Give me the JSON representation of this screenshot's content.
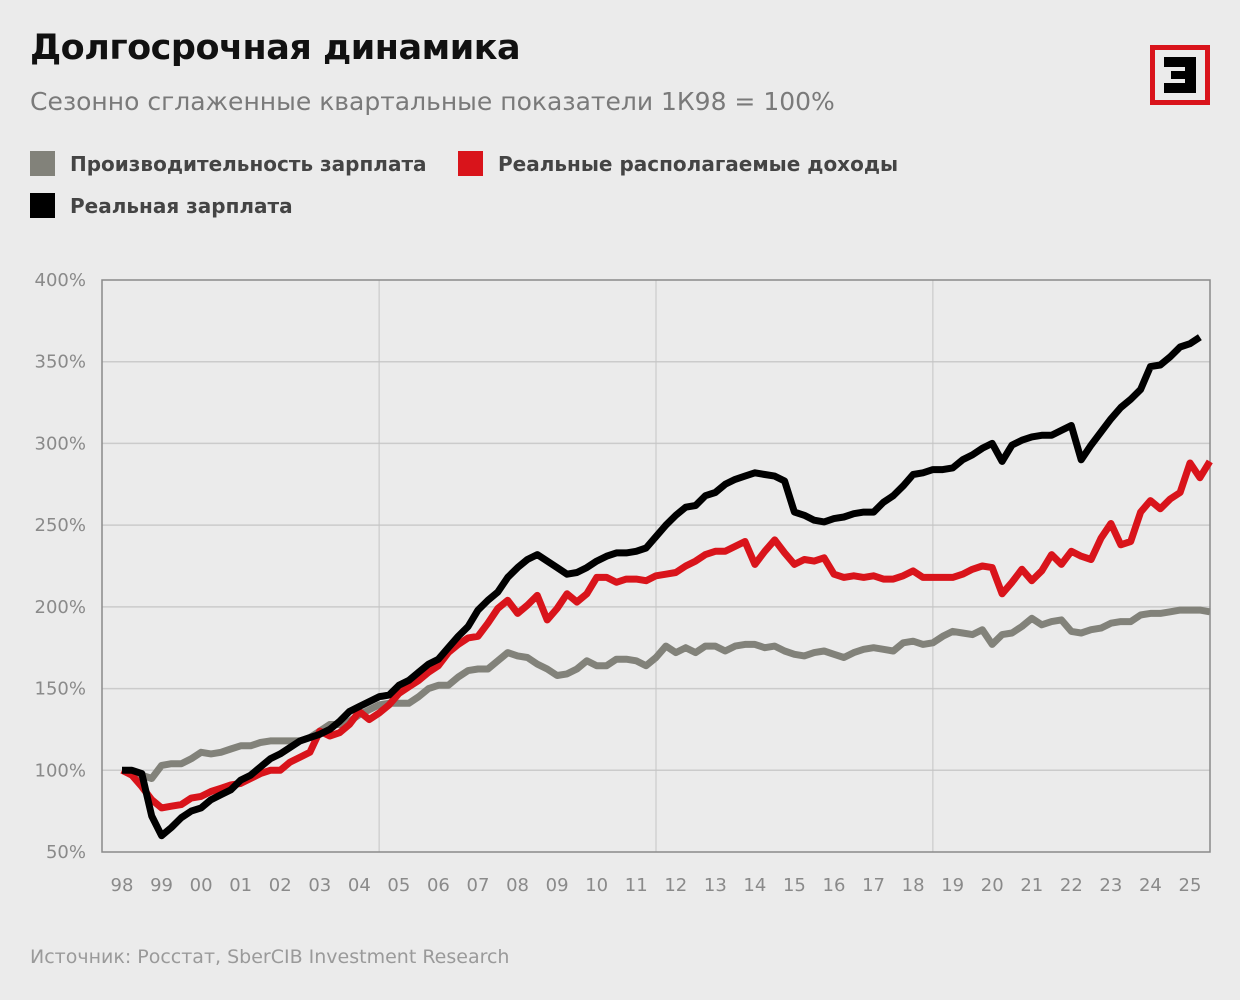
{
  "title": "Долгосрочная динамика",
  "subtitle": "Сезонно сглаженные квартальные показатели 1К98 = 100%",
  "source": "Источник: Росстат, SberCIB Investment Research",
  "logo": {
    "text": "Э",
    "color": "#d9141b"
  },
  "chart_data": {
    "type": "line",
    "xlabel": "",
    "ylabel": "",
    "ylim": [
      50,
      400
    ],
    "y_ticks": [
      "50%",
      "100%",
      "150%",
      "200%",
      "250%",
      "300%",
      "350%",
      "400%"
    ],
    "y_tick_values": [
      50,
      100,
      150,
      200,
      250,
      300,
      350,
      400
    ],
    "x_tick_labels": [
      "98",
      "99",
      "00",
      "01",
      "02",
      "03",
      "04",
      "05",
      "06",
      "07",
      "08",
      "09",
      "10",
      "11",
      "12",
      "13",
      "14",
      "15",
      "16",
      "17",
      "18",
      "19",
      "20",
      "21",
      "22",
      "23",
      "24",
      "25"
    ],
    "x_tick_years": [
      1998,
      1999,
      2000,
      2001,
      2002,
      2003,
      2004,
      2005,
      2006,
      2007,
      2008,
      2009,
      2010,
      2011,
      2012,
      2013,
      2014,
      2015,
      2016,
      2017,
      2018,
      2019,
      2020,
      2021,
      2022,
      2023,
      2024,
      2025
    ],
    "x_range": [
      1997.55,
      2025.5
    ],
    "grid": true,
    "legend_position": "top-left",
    "x_start_year": 1998.0,
    "x_step_years": 0.25,
    "series": [
      {
        "name": "Производительность зарплата",
        "color": "#82827a",
        "values": [
          100,
          99,
          97,
          95,
          103,
          104,
          104,
          107,
          111,
          110,
          111,
          113,
          115,
          115,
          117,
          118,
          118,
          118,
          118,
          120,
          124,
          128,
          128,
          130,
          134,
          137,
          140,
          141,
          141,
          141,
          145,
          150,
          152,
          152,
          157,
          161,
          162,
          162,
          167,
          172,
          170,
          169,
          165,
          162,
          158,
          159,
          162,
          167,
          164,
          164,
          168,
          168,
          167,
          164,
          169,
          176,
          172,
          175,
          172,
          176,
          176,
          173,
          176,
          177,
          177,
          175,
          176,
          173,
          171,
          170,
          172,
          173,
          171,
          169,
          172,
          174,
          175,
          174,
          173,
          178,
          179,
          177,
          178,
          182,
          185,
          184,
          183,
          186,
          177,
          183,
          184,
          188,
          193,
          189,
          191,
          192,
          185,
          184,
          186,
          187,
          190,
          191,
          191,
          195,
          196,
          196,
          197,
          198,
          198,
          198,
          197
        ]
      },
      {
        "name": "Реальные располагаемые доходы",
        "color": "#d9141b",
        "values": [
          100,
          97,
          90,
          82,
          77,
          78,
          79,
          83,
          84,
          87,
          89,
          91,
          92,
          95,
          98,
          100,
          100,
          105,
          108,
          111,
          124,
          121,
          123,
          128,
          136,
          131,
          135,
          140,
          147,
          151,
          155,
          160,
          164,
          172,
          177,
          181,
          182,
          190,
          199,
          204,
          196,
          201,
          207,
          192,
          199,
          208,
          203,
          208,
          218,
          218,
          215,
          217,
          217,
          216,
          219,
          220,
          221,
          225,
          228,
          232,
          234,
          234,
          237,
          240,
          226,
          234,
          241,
          233,
          226,
          229,
          228,
          230,
          220,
          218,
          219,
          218,
          219,
          217,
          217,
          219,
          222,
          218,
          218,
          218,
          218,
          220,
          223,
          225,
          224,
          208,
          215,
          223,
          216,
          222,
          232,
          226,
          234,
          231,
          229,
          242,
          251,
          238,
          240,
          258,
          265,
          260,
          266,
          270,
          288,
          279,
          289
        ]
      },
      {
        "name": "Реальная зарплата",
        "color": "#000000",
        "values": [
          100,
          100,
          98,
          72,
          60,
          65,
          71,
          75,
          77,
          82,
          85,
          88,
          94,
          97,
          102,
          107,
          110,
          114,
          118,
          120,
          122,
          125,
          130,
          136,
          139,
          142,
          145,
          146,
          152,
          155,
          160,
          165,
          168,
          175,
          182,
          188,
          198,
          204,
          209,
          218,
          224,
          229,
          232,
          228,
          224,
          220,
          221,
          224,
          228,
          231,
          233,
          233,
          234,
          236,
          243,
          250,
          256,
          261,
          262,
          268,
          270,
          275,
          278,
          280,
          282,
          281,
          280,
          277,
          258,
          256,
          253,
          252,
          254,
          255,
          257,
          258,
          258,
          264,
          268,
          274,
          281,
          282,
          284,
          284,
          285,
          290,
          293,
          297,
          300,
          289,
          299,
          302,
          304,
          305,
          305,
          308,
          311,
          290,
          299,
          307,
          315,
          322,
          327,
          333,
          347,
          348,
          353,
          359,
          361,
          365
        ]
      }
    ]
  }
}
